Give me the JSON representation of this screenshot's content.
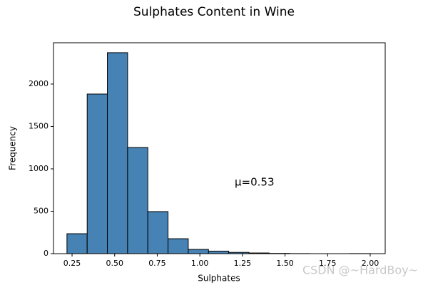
{
  "chart_data": {
    "type": "histogram",
    "title": "Sulphates Content in Wine",
    "xlabel": "Sulphates",
    "ylabel": "Frequency",
    "annotation": "μ=0.53",
    "watermark": "CSDN @~HardBoy~",
    "bins": [
      0.22,
      0.3387,
      0.4573,
      0.576,
      0.6947,
      0.8133,
      0.932,
      1.0507,
      1.1693,
      1.288,
      1.4067,
      1.5253,
      1.644,
      1.7627,
      1.8813,
      2.0
    ],
    "values": [
      235,
      1882,
      2370,
      1252,
      496,
      176,
      50,
      30,
      15,
      8,
      3,
      1,
      0,
      0,
      1
    ],
    "color": "#4682b4",
    "edgecolor": "#000000",
    "xlim": [
      0.141,
      2.088
    ],
    "ylim": [
      0,
      2487
    ],
    "xticks": [
      0.25,
      {
        "value": 0.5,
        "label": "0.50"
      },
      0.75,
      {
        "value": 1.0,
        "label": "1.00"
      },
      1.25,
      {
        "value": 1.5,
        "label": "1.50"
      },
      1.75,
      {
        "value": 2.0,
        "label": "2.00"
      }
    ],
    "yticks": [
      0,
      500,
      1000,
      1500,
      2000
    ],
    "grid": false
  }
}
